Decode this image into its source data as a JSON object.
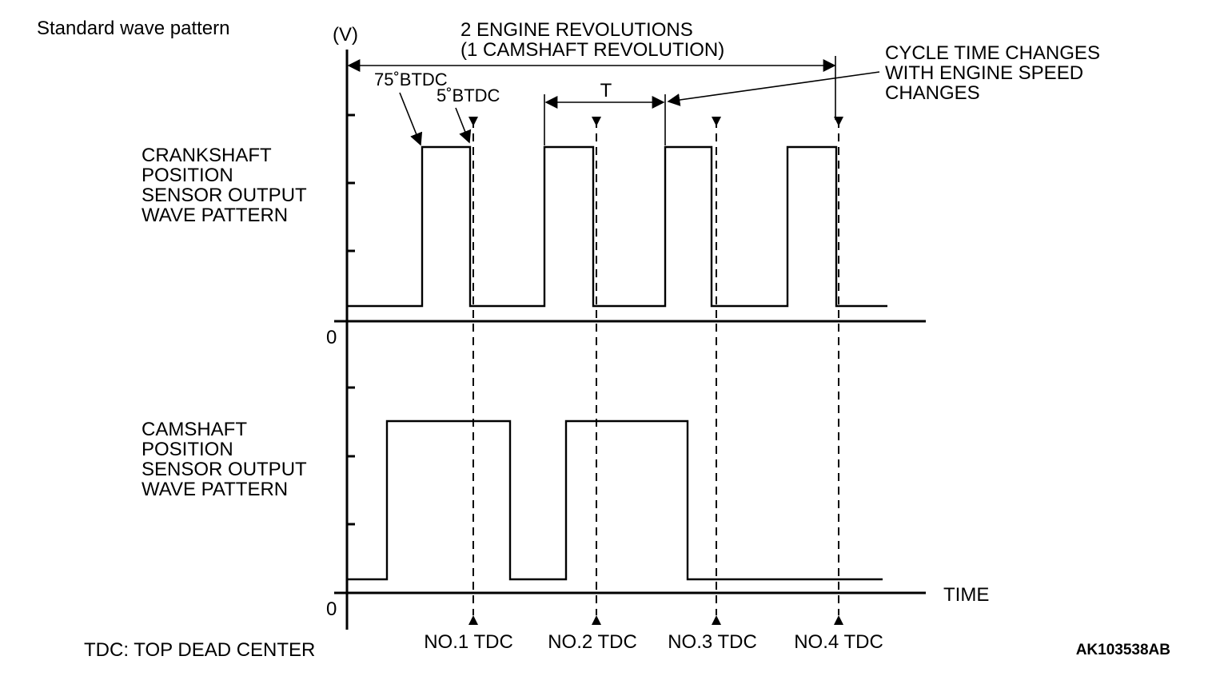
{
  "header": {
    "title": "Standard wave pattern"
  },
  "axis": {
    "unit": "(V)",
    "zero_top": "0",
    "zero_bottom": "0",
    "time": "TIME"
  },
  "annotations": {
    "revolutions_line1": "2 ENGINE REVOLUTIONS",
    "revolutions_line2": "(1 CAMSHAFT REVOLUTION)",
    "btdc75": "75˚BTDC",
    "btdc5": "5˚BTDC",
    "period": "T",
    "cycle_line1": "CYCLE TIME CHANGES",
    "cycle_line2": "WITH ENGINE SPEED",
    "cycle_line3": "CHANGES"
  },
  "crank_label": [
    "CRANKSHAFT",
    "POSITION",
    "SENSOR OUTPUT",
    "WAVE PATTERN"
  ],
  "cam_label": [
    "CAMSHAFT",
    "POSITION",
    "SENSOR OUTPUT",
    "WAVE PATTERN"
  ],
  "tdc_labels": [
    "NO.1 TDC",
    "NO.2 TDC",
    "NO.3 TDC",
    "NO.4 TDC"
  ],
  "footer": {
    "legend": "TDC: TOP DEAD CENTER",
    "code": "AK103538AB"
  }
}
